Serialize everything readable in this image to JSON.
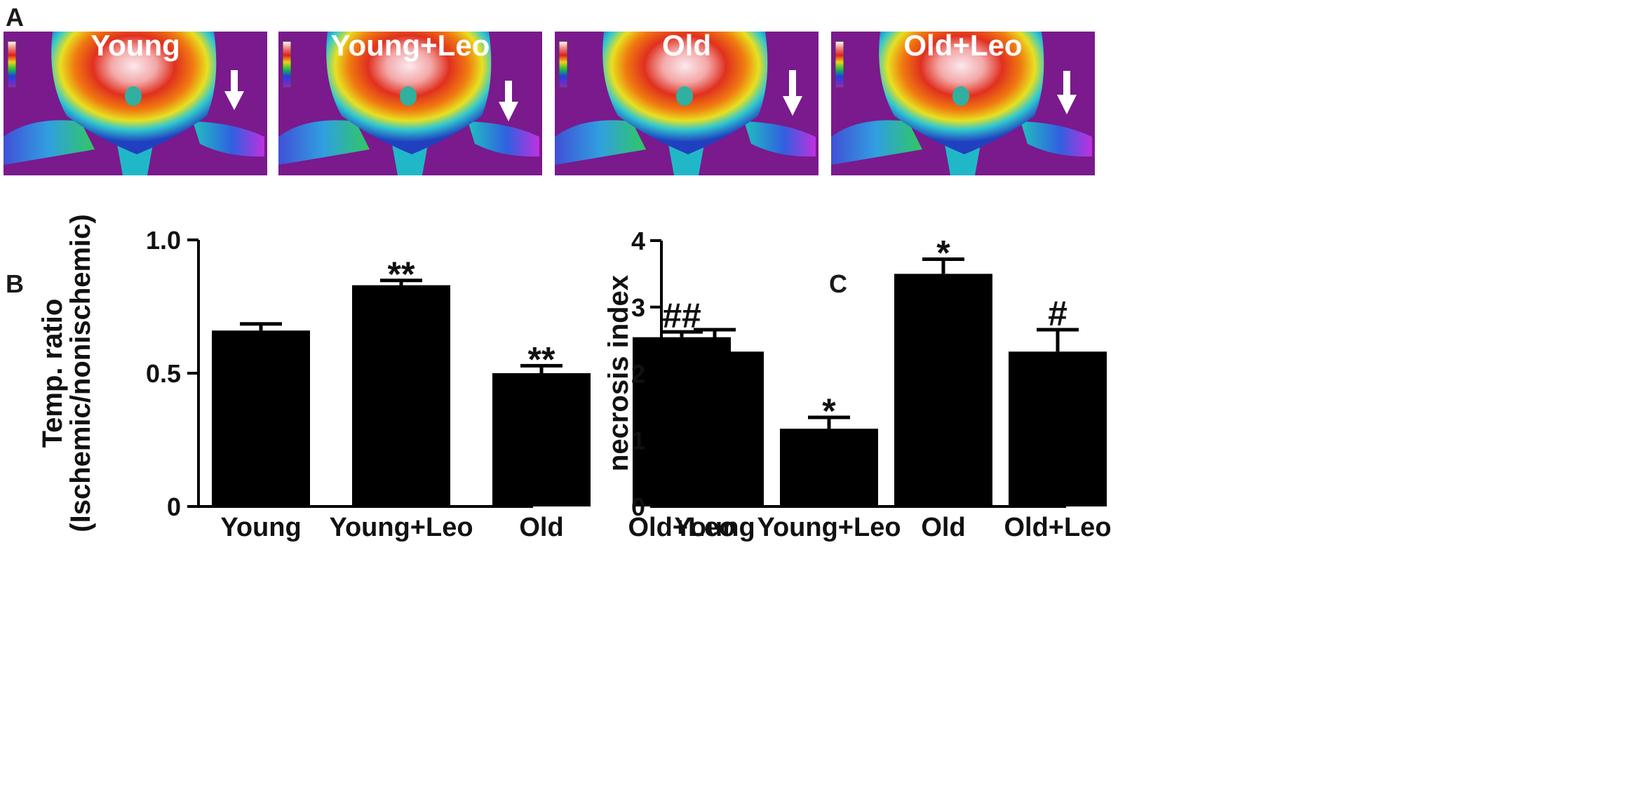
{
  "panels": {
    "a": "A",
    "b": "B",
    "c": "C"
  },
  "thermal_images": [
    {
      "label": "Young",
      "arrow": "white-arrow"
    },
    {
      "label": "Young+Leo",
      "arrow": "white-arrow"
    },
    {
      "label": "Old",
      "arrow": "white-arrow"
    },
    {
      "label": "Old+Leo",
      "arrow": "white-arrow"
    }
  ],
  "colors": {
    "bar": "#000000",
    "axis": "#000000",
    "thermal_bg": "#7a1a8c"
  },
  "chart_data": [
    {
      "type": "bar",
      "title": "",
      "xlabel": "",
      "ylabel_line1": "Temp. ratio",
      "ylabel_line2": "(Ischemic/nonischemic)",
      "categories": [
        "Young",
        "Young+Leo",
        "Old",
        "Old+Leo"
      ],
      "values": [
        0.66,
        0.83,
        0.5,
        0.635
      ],
      "errors": [
        0.025,
        0.018,
        0.028,
        0.02
      ],
      "significance": [
        "",
        "**",
        "**",
        "##"
      ],
      "ylim": [
        0,
        1.0
      ],
      "yticks": [
        "0",
        "0.5",
        "1.0"
      ],
      "ytick_values": [
        0,
        0.5,
        1.0
      ]
    },
    {
      "type": "bar",
      "title": "",
      "xlabel": "",
      "ylabel_line1": "necrosis index",
      "ylabel_line2": "",
      "categories": [
        "Young",
        "Young+Leo",
        "Old",
        "Old+Leo"
      ],
      "values": [
        2.33,
        1.17,
        3.5,
        2.33
      ],
      "errors": [
        0.33,
        0.17,
        0.22,
        0.33
      ],
      "significance": [
        "",
        "*",
        "*",
        "#"
      ],
      "ylim": [
        0,
        4
      ],
      "yticks": [
        "0",
        "1",
        "2",
        "3",
        "4"
      ],
      "ytick_values": [
        0,
        1,
        2,
        3,
        4
      ]
    }
  ]
}
